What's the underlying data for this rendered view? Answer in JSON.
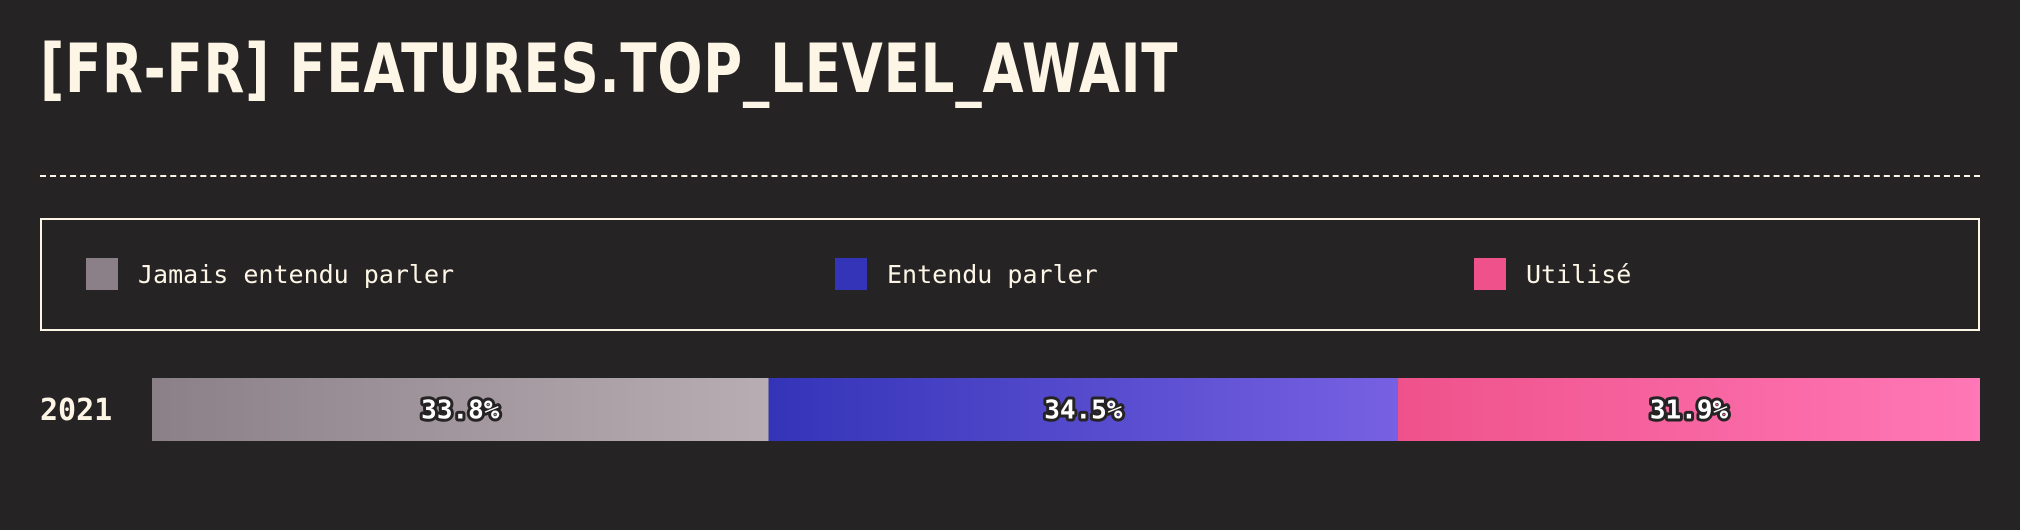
{
  "page": {
    "title": "[FR-FR] FEATURES.TOP_LEVEL_AWAIT"
  },
  "colors": {
    "background": "#262325",
    "text": "#fdf6e6",
    "never_heard_start": "#8b8088",
    "never_heard_end": "#b7adb2",
    "heard_start": "#3434b8",
    "heard_end": "#7761e2",
    "used_start": "#ef528b",
    "used_end": "#ff77b6"
  },
  "legend": {
    "items": [
      {
        "label": "Jamais entendu parler",
        "color": "#8b8088"
      },
      {
        "label": "Entendu parler",
        "color": "#3434b8"
      },
      {
        "label": "Utilisé",
        "color": "#ef528b"
      }
    ]
  },
  "chart_data": {
    "type": "bar",
    "orientation": "horizontal",
    "stacked": true,
    "categories": [
      "2021"
    ],
    "series": [
      {
        "name": "Jamais entendu parler",
        "values": [
          33.8
        ],
        "label": "33.8%"
      },
      {
        "name": "Entendu parler",
        "values": [
          34.5
        ],
        "label": "34.5%"
      },
      {
        "name": "Utilisé",
        "values": [
          31.9
        ],
        "label": "31.9%"
      }
    ],
    "xlim": [
      0,
      100
    ],
    "legend": "top"
  }
}
